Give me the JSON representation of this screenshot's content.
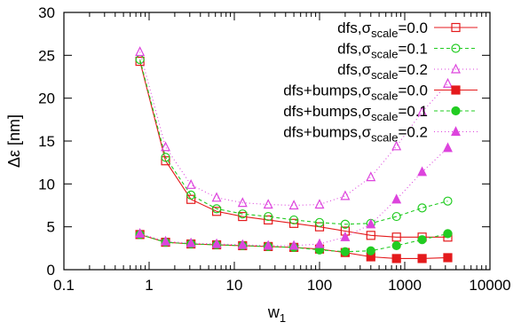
{
  "chart_data": {
    "type": "line",
    "xscale": "log",
    "xlim": [
      0.1,
      10000
    ],
    "ylim": [
      0,
      30
    ],
    "grid": false,
    "legend_position": "top-right",
    "xlabel": "w1",
    "xlabel_main": "w",
    "xlabel_sub": "1",
    "ylabel": "Δε [nm]",
    "xticks": [
      0.1,
      1,
      10,
      100,
      1000,
      10000
    ],
    "xtick_labels": [
      "0.1",
      "1",
      "10",
      "100",
      "1000",
      "10000"
    ],
    "yticks": [
      0,
      5,
      10,
      15,
      20,
      25,
      30
    ],
    "ytick_labels": [
      "0",
      "5",
      "10",
      "15",
      "20",
      "25",
      "30"
    ],
    "x": [
      0.78,
      1.56,
      3.1,
      6.2,
      12.5,
      25,
      50,
      100,
      200,
      400,
      800,
      1600,
      3200
    ],
    "series": [
      {
        "name": "dfs,σscale=0.0",
        "label_pre": "dfs,σ",
        "label_sub": "scale",
        "label_post": "=0.0",
        "color": "#e41a1c",
        "dash": "",
        "marker": "square-open",
        "values": [
          24.3,
          12.7,
          8.2,
          6.8,
          6.2,
          5.8,
          5.4,
          5.0,
          4.5,
          4.0,
          3.8,
          3.8,
          3.8
        ]
      },
      {
        "name": "dfs,σscale=0.1",
        "label_pre": "dfs,σ",
        "label_sub": "scale",
        "label_post": "=0.1",
        "color": "#22cc22",
        "dash": "4,3",
        "marker": "circle-open",
        "values": [
          24.5,
          13.1,
          8.7,
          7.1,
          6.5,
          6.2,
          5.8,
          5.5,
          5.3,
          5.4,
          6.2,
          7.2,
          8.0
        ]
      },
      {
        "name": "dfs,σscale=0.2",
        "label_pre": "dfs,σ",
        "label_sub": "scale",
        "label_post": "=0.2",
        "color": "#dd44dd",
        "dash": "1,3",
        "marker": "triangle-open",
        "values": [
          25.4,
          14.3,
          9.9,
          8.4,
          7.8,
          7.6,
          7.5,
          7.6,
          8.6,
          10.8,
          14.4,
          18.4,
          21.7
        ]
      },
      {
        "name": "dfs+bumps,σscale=0.0",
        "label_pre": "dfs+bumps,σ",
        "label_sub": "scale",
        "label_post": "=0.0",
        "color": "#e41a1c",
        "dash": "",
        "marker": "square-filled",
        "values": [
          4.1,
          3.2,
          3.0,
          2.9,
          2.8,
          2.7,
          2.6,
          2.4,
          2.0,
          1.5,
          1.3,
          1.3,
          1.4
        ]
      },
      {
        "name": "dfs+bumps,σscale=0.1",
        "label_pre": "dfs+bumps,σ",
        "label_sub": "scale",
        "label_post": "=0.1",
        "color": "#22cc22",
        "dash": "4,3",
        "marker": "circle-filled",
        "values": [
          4.1,
          3.2,
          3.0,
          2.9,
          2.8,
          2.7,
          2.6,
          2.3,
          2.1,
          2.2,
          2.8,
          3.5,
          4.2
        ]
      },
      {
        "name": "dfs+bumps,σscale=0.2",
        "label_pre": "dfs+bumps,σ",
        "label_sub": "scale",
        "label_post": "=0.2",
        "color": "#dd44dd",
        "dash": "1,3",
        "marker": "triangle-filled",
        "values": [
          4.2,
          3.3,
          3.1,
          3.0,
          2.9,
          2.8,
          2.8,
          3.0,
          3.8,
          5.3,
          8.2,
          11.4,
          14.2
        ]
      }
    ]
  }
}
